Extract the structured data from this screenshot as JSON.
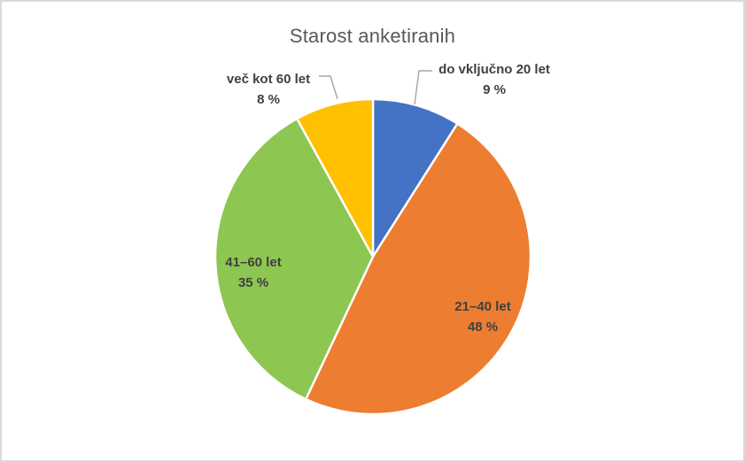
{
  "window": {
    "background": "#FFFFFF",
    "border_color": "#D9D9D9"
  },
  "chart_data": {
    "type": "pie",
    "title": "Starost anketiranih",
    "unit": "%",
    "start_angle_deg": 0,
    "direction": "clockwise",
    "legend": "none",
    "title_color": "#595959",
    "label_color": "#404040",
    "leader_line_color": "#A6A6A6",
    "categories": [
      "do vključno 20 let",
      "21–40 let",
      "41–60 let",
      "več kot 60 let"
    ],
    "values": [
      9,
      48,
      35,
      8
    ],
    "slices": [
      {
        "label": "do vključno 20 let",
        "value": 9,
        "value_text": "9 %",
        "color": "#4472C4",
        "label_placement": "outside"
      },
      {
        "label": "21–40 let",
        "value": 48,
        "value_text": "48 %",
        "color": "#ED7D31",
        "label_placement": "inside"
      },
      {
        "label": "41–60 let",
        "value": 35,
        "value_text": "35 %",
        "color": "#8DC650",
        "label_placement": "inside"
      },
      {
        "label": "več kot 60 let",
        "value": 8,
        "value_text": "8 %",
        "color": "#FFC000",
        "label_placement": "outside"
      }
    ]
  }
}
